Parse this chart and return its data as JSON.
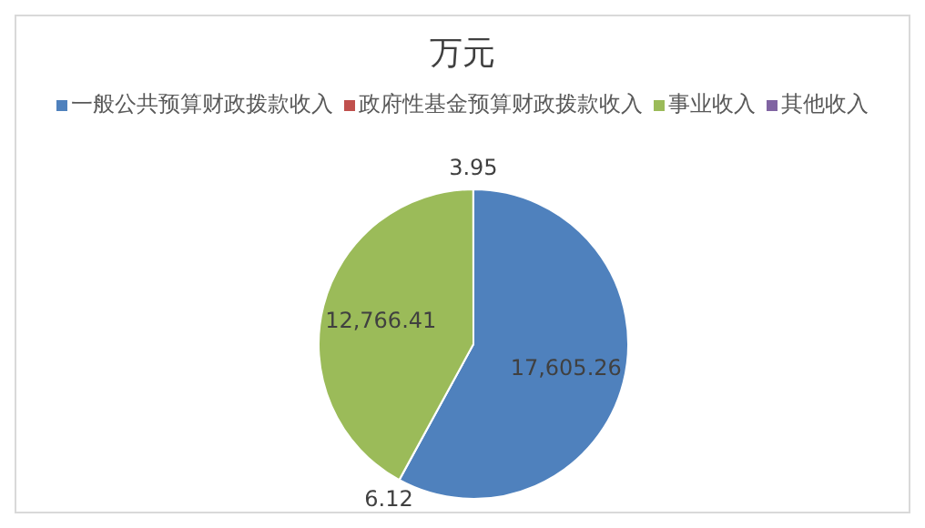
{
  "chart_data": {
    "type": "pie",
    "title": "万元",
    "categories": [
      "一般公共预算财政拨款收入",
      "政府性基金预算财政拨款收入",
      "事业收入",
      "其他收入"
    ],
    "values": [
      17605.26,
      6.12,
      12766.41,
      3.95
    ],
    "value_labels": [
      "17,605.26",
      "6.12",
      "12,766.41",
      "3.95"
    ],
    "colors": [
      "#4f81bd",
      "#c0504d",
      "#9bbb59",
      "#8064a2"
    ],
    "legend": "top"
  }
}
